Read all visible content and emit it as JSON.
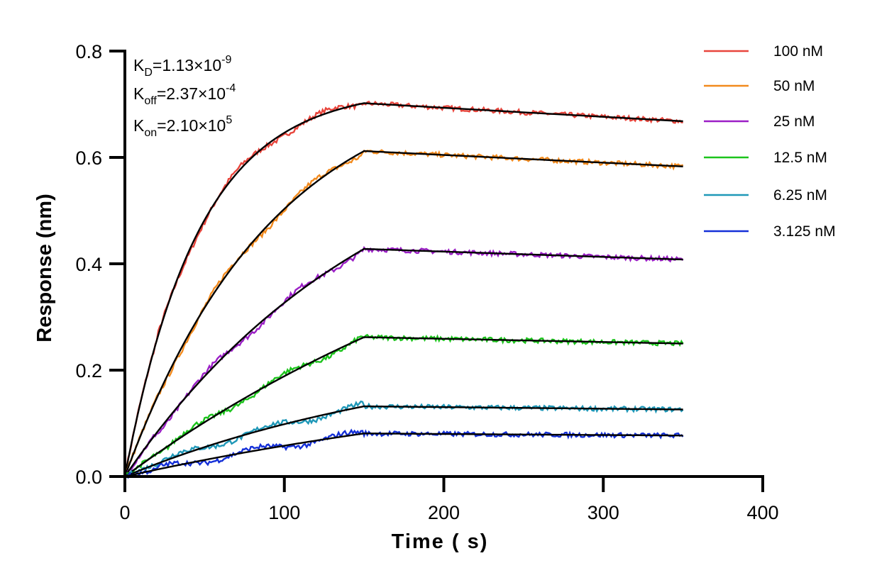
{
  "chart_data": {
    "type": "line",
    "xlabel": "Time ( s)",
    "ylabel": "Response (nm)",
    "xlim": [
      0,
      400
    ],
    "ylim": [
      0,
      0.8
    ],
    "xticks": [
      "0",
      "100",
      "200",
      "300",
      "400"
    ],
    "yticks": [
      "0.0",
      "0.2",
      "0.4",
      "0.6",
      "0.8"
    ],
    "grid": false,
    "legend_position": "top-right",
    "annotations": [
      {
        "base": "K",
        "sub": "D",
        "value": "=1.13×10",
        "exp": "-9"
      },
      {
        "base": "K",
        "sub": "off",
        "value": "=2.37×10",
        "exp": "-4"
      },
      {
        "base": "K",
        "sub": "on",
        "value": "=2.10×10",
        "exp": "5"
      }
    ],
    "association_end": 150,
    "x_end": 350,
    "fit_color": "#000000",
    "series": [
      {
        "name": "100 nM",
        "color": "#e8453c",
        "plateau": 0.702,
        "k_obs": 0.0216,
        "end": 0.668
      },
      {
        "name": "50 nM",
        "color": "#f28a1d",
        "plateau": 0.612,
        "k_obs": 0.0107,
        "end": 0.583
      },
      {
        "name": "25 nM",
        "color": "#9b1fc6",
        "plateau": 0.428,
        "k_obs": 0.0062,
        "end": 0.408
      },
      {
        "name": "12.5 nM",
        "color": "#1cc41c",
        "plateau": 0.262,
        "k_obs": 0.0033,
        "end": 0.25
      },
      {
        "name": "6.25 nM",
        "color": "#1f98b8",
        "plateau": 0.132,
        "k_obs": 0.005,
        "end": 0.126
      },
      {
        "name": "3.125 nM",
        "color": "#1530d8",
        "plateau": 0.081,
        "k_obs": 0.003,
        "end": 0.077
      }
    ]
  }
}
